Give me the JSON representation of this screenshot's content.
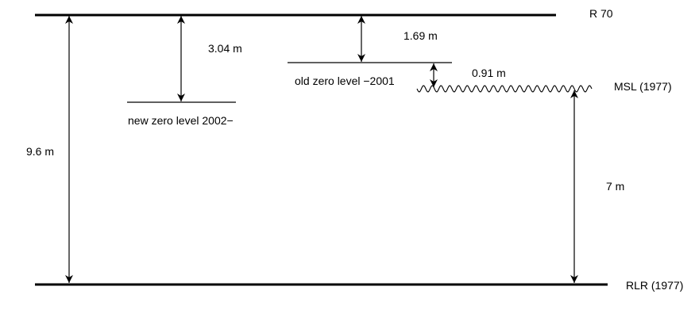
{
  "levels": {
    "r70": {
      "label": "R 70"
    },
    "new_zero": {
      "label": "new zero level 2002−"
    },
    "old_zero": {
      "label": "old zero level −2001"
    },
    "msl": {
      "label": "MSL (1977)"
    },
    "rlr": {
      "label": "RLR (1977)"
    }
  },
  "dimensions": {
    "r70_to_rlr": {
      "label": "9.6 m"
    },
    "r70_to_new_zero": {
      "label": "3.04 m"
    },
    "r70_to_old_zero": {
      "label": "1.69 m"
    },
    "old_zero_to_msl": {
      "label": "0.91 m"
    },
    "msl_to_rlr": {
      "label": "7 m"
    }
  },
  "colors": {
    "ink": "#000000",
    "background": "#ffffff"
  }
}
